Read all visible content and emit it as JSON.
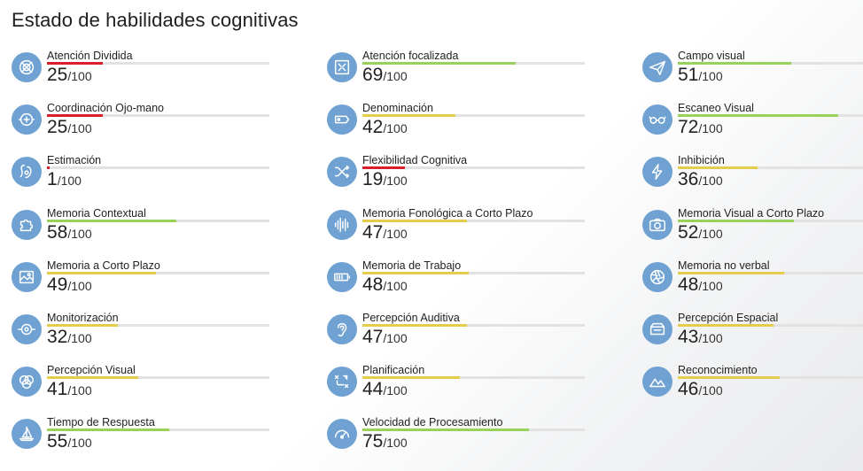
{
  "page": {
    "title": "Estado de habilidades cognitivas"
  },
  "max_label": "/100",
  "colors": {
    "low": "#d9202a",
    "mid": "#e6cc4c",
    "high": "#98d15b",
    "track": "#e2e2e2",
    "icon_bg": "#6fa2d2"
  },
  "skills": [
    {
      "name": "Atención Dividida",
      "score": 25,
      "icon": "target-icon"
    },
    {
      "name": "Coordinación Ojo-mano",
      "score": 25,
      "icon": "eye-hand-icon"
    },
    {
      "name": "Estimación",
      "score": 1,
      "icon": "estimation-icon"
    },
    {
      "name": "Memoria Contextual",
      "score": 58,
      "icon": "puzzle-icon"
    },
    {
      "name": "Memoria a Corto Plazo",
      "score": 49,
      "icon": "image-icon"
    },
    {
      "name": "Monitorización",
      "score": 32,
      "icon": "monitor-icon"
    },
    {
      "name": "Percepción Visual",
      "score": 41,
      "icon": "circles-icon"
    },
    {
      "name": "Tiempo de Respuesta",
      "score": 55,
      "icon": "sailboat-icon"
    },
    {
      "name": "Atención focalizada",
      "score": 69,
      "icon": "focus-icon"
    },
    {
      "name": "Denominación",
      "score": 42,
      "icon": "tag-icon"
    },
    {
      "name": "Flexibilidad Cognitiva",
      "score": 19,
      "icon": "shuffle-icon"
    },
    {
      "name": "Memoria Fonológica a Corto Plazo",
      "score": 47,
      "icon": "soundwave-icon"
    },
    {
      "name": "Memoria de Trabajo",
      "score": 48,
      "icon": "battery-icon"
    },
    {
      "name": "Percepción Auditiva",
      "score": 47,
      "icon": "ear-icon"
    },
    {
      "name": "Planificación",
      "score": 44,
      "icon": "plan-icon"
    },
    {
      "name": "Velocidad de Procesamiento",
      "score": 75,
      "icon": "speedometer-icon"
    },
    {
      "name": "Campo visual",
      "score": 51,
      "icon": "paper-plane-icon"
    },
    {
      "name": "Escaneo Visual",
      "score": 72,
      "icon": "glasses-icon"
    },
    {
      "name": "Inhibición",
      "score": 36,
      "icon": "lightning-icon"
    },
    {
      "name": "Memoria Visual a Corto Plazo",
      "score": 52,
      "icon": "camera-icon"
    },
    {
      "name": "Memoria no verbal",
      "score": 48,
      "icon": "aperture-icon"
    },
    {
      "name": "Percepción Espacial",
      "score": 43,
      "icon": "space-icon"
    },
    {
      "name": "Reconocimiento",
      "score": 46,
      "icon": "mountains-icon"
    }
  ]
}
